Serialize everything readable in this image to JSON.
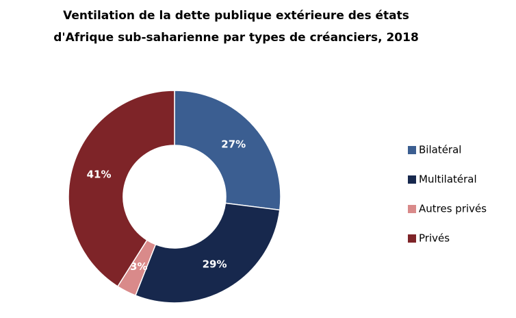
{
  "chart_data": {
    "type": "donut",
    "title": [
      "Ventilation de la dette publique extérieure des états",
      "d'Afrique sub-saharienne par  types de créanciers, 2018"
    ],
    "categories": [
      "Bilatéral",
      "Multilatéral",
      "Autres privés",
      "Privés"
    ],
    "values": [
      27,
      29,
      3,
      41
    ],
    "value_labels": [
      "27%",
      "29%",
      "3%",
      "41%"
    ],
    "colors": [
      "#3b5e91",
      "#17284d",
      "#d98a8a",
      "#7e2428"
    ],
    "legend": "right"
  }
}
